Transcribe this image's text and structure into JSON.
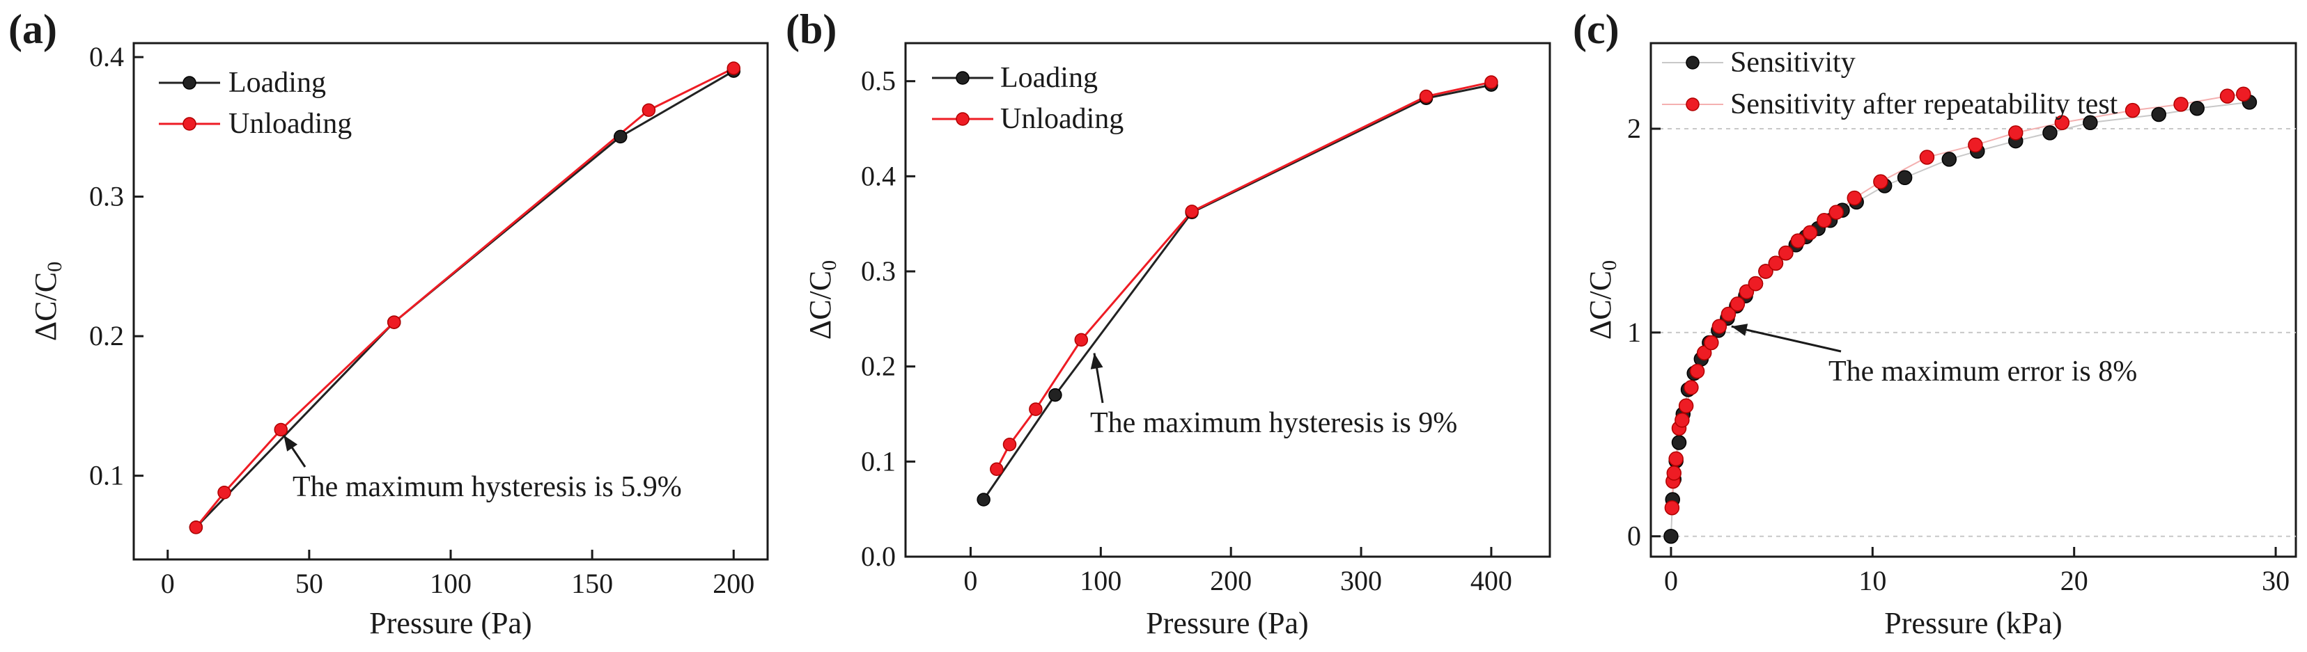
{
  "chart_data": [
    {
      "panel": "(a)",
      "type": "line",
      "xlabel": "Pressure (Pa)",
      "ylabel": "ΔC/C",
      "ylabel_sub": "0",
      "xlim": [
        -12,
        212
      ],
      "ylim": [
        0.04,
        0.41
      ],
      "xticks": [
        0,
        50,
        100,
        150,
        200
      ],
      "yticks": [
        0.1,
        0.2,
        0.3,
        0.4
      ],
      "grid": false,
      "legend_position": "top-left",
      "series": [
        {
          "name": "Loading",
          "color": "#222222",
          "x": [
            10,
            80,
            160,
            200
          ],
          "y": [
            0.063,
            0.21,
            0.343,
            0.39
          ]
        },
        {
          "name": "Unloading",
          "color": "#ee1c24",
          "x": [
            10,
            20,
            40,
            80,
            170,
            200
          ],
          "y": [
            0.063,
            0.088,
            0.133,
            0.21,
            0.362,
            0.392
          ]
        }
      ],
      "annotation": {
        "text": "The maximum hysteresis is 5.9%",
        "arrow_to": [
          41,
          0.129
        ]
      }
    },
    {
      "panel": "(b)",
      "type": "line",
      "xlabel": "Pressure (Pa)",
      "ylabel": "ΔC/C",
      "ylabel_sub": "0",
      "xlim": [
        -50,
        445
      ],
      "ylim": [
        0,
        0.54
      ],
      "xticks": [
        0,
        100,
        200,
        300,
        400
      ],
      "yticks": [
        0.0,
        0.1,
        0.2,
        0.3,
        0.4,
        0.5
      ],
      "grid": false,
      "legend_position": "top-left",
      "series": [
        {
          "name": "Loading",
          "color": "#222222",
          "x": [
            10,
            65,
            170,
            350,
            400
          ],
          "y": [
            0.06,
            0.17,
            0.362,
            0.482,
            0.496
          ]
        },
        {
          "name": "Unloading",
          "color": "#ee1c24",
          "x": [
            20,
            30,
            50,
            85,
            170,
            350,
            400
          ],
          "y": [
            0.092,
            0.118,
            0.155,
            0.228,
            0.363,
            0.484,
            0.499
          ]
        }
      ],
      "annotation": {
        "text": "The maximum hysteresis is 9%",
        "arrow_to": [
          95,
          0.214
        ]
      }
    },
    {
      "panel": "(c)",
      "type": "scatter",
      "xlabel": "Pressure (kPa)",
      "ylabel": "ΔC/C",
      "ylabel_sub": "0",
      "xlim": [
        -1,
        31
      ],
      "ylim": [
        -0.1,
        2.42
      ],
      "xticks": [
        0,
        10,
        20,
        30
      ],
      "yticks": [
        0,
        1,
        2
      ],
      "grid": true,
      "legend_position": "top-left",
      "series": [
        {
          "name": "Sensitivity",
          "color": "#222222",
          "x": [
            0,
            0.08,
            0.15,
            0.25,
            0.4,
            0.6,
            0.85,
            1.15,
            1.5,
            1.9,
            2.35,
            2.8,
            3.25,
            3.7,
            4.2,
            4.7,
            5.2,
            5.7,
            6.2,
            6.7,
            7.3,
            7.9,
            8.5,
            9.2,
            10.6,
            11.6,
            13.8,
            15.2,
            17.1,
            18.8,
            20.8,
            24.2,
            26.1,
            28.7
          ],
          "y": [
            0,
            0.18,
            0.28,
            0.37,
            0.46,
            0.6,
            0.72,
            0.8,
            0.87,
            0.95,
            1.01,
            1.07,
            1.13,
            1.18,
            1.24,
            1.3,
            1.34,
            1.39,
            1.43,
            1.47,
            1.51,
            1.55,
            1.6,
            1.64,
            1.72,
            1.76,
            1.85,
            1.89,
            1.94,
            1.98,
            2.03,
            2.07,
            2.1,
            2.13
          ]
        },
        {
          "name": "Sensitivity after repeatability test",
          "color": "#ee1c24",
          "x": [
            0.05,
            0.1,
            0.15,
            0.25,
            0.4,
            0.55,
            0.75,
            1.0,
            1.3,
            1.65,
            2.0,
            2.4,
            2.85,
            3.3,
            3.75,
            4.2,
            4.7,
            5.2,
            5.7,
            6.3,
            6.9,
            7.6,
            8.2,
            9.1,
            10.4,
            12.7,
            15.1,
            17.1,
            19.4,
            22.9,
            25.3,
            27.6,
            28.4
          ],
          "y": [
            0.14,
            0.27,
            0.31,
            0.38,
            0.53,
            0.57,
            0.64,
            0.73,
            0.81,
            0.9,
            0.95,
            1.03,
            1.09,
            1.14,
            1.2,
            1.24,
            1.3,
            1.34,
            1.39,
            1.45,
            1.49,
            1.55,
            1.59,
            1.66,
            1.74,
            1.86,
            1.92,
            1.98,
            2.03,
            2.09,
            2.12,
            2.16,
            2.17
          ]
        }
      ],
      "annotation": {
        "text": "The maximum error is 8%",
        "arrow_to": [
          3.0,
          1.03
        ]
      }
    }
  ]
}
